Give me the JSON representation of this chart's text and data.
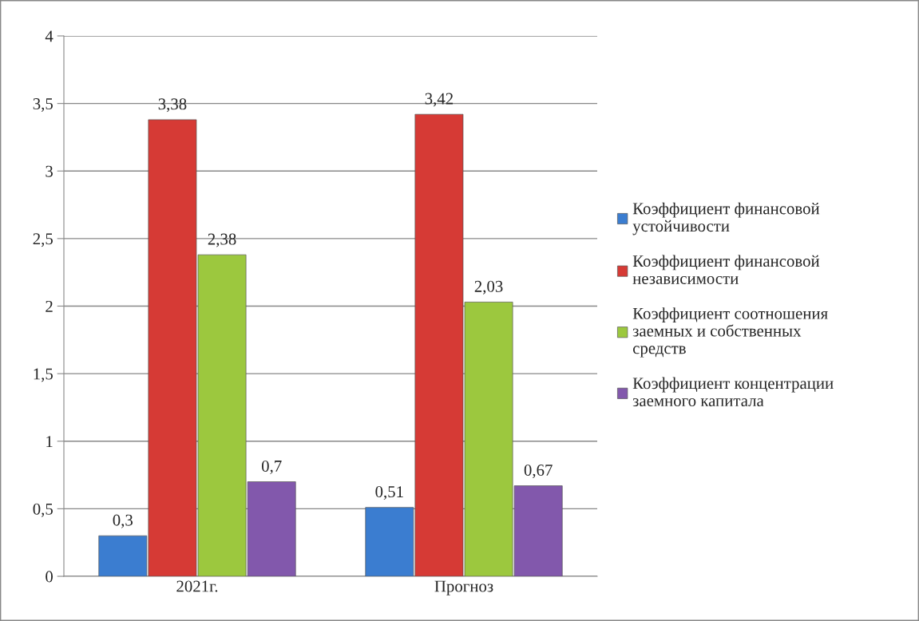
{
  "chart_data": {
    "type": "bar",
    "categories": [
      "2021г.",
      "Прогноз"
    ],
    "series": [
      {
        "name": "Коэффициент финансовой\nустойчивости",
        "color": "#3b7dd0",
        "values": [
          0.3,
          0.51
        ],
        "value_labels": [
          "0,3",
          "0,51"
        ]
      },
      {
        "name": "Коэффициент финансовой\nнезависимости",
        "color": "#d63a35",
        "values": [
          3.38,
          3.42
        ],
        "value_labels": [
          "3,38",
          "3,42"
        ]
      },
      {
        "name": "Коэффициент соотношения\nзаемных и собственных\nсредств",
        "color": "#9cc83e",
        "values": [
          2.38,
          2.03
        ],
        "value_labels": [
          "2,38",
          "2,03"
        ]
      },
      {
        "name": "Коэффициент концентрации\nзаемного капитала",
        "color": "#8258ac",
        "values": [
          0.7,
          0.67
        ],
        "value_labels": [
          "0,7",
          "0,67"
        ]
      }
    ],
    "ylim": [
      0,
      4
    ],
    "yticks": [
      0,
      {
        "value": 0.5,
        "label": "0,5"
      },
      1,
      {
        "value": 1.5,
        "label": "1,5"
      },
      2,
      {
        "value": 2.5,
        "label": "2,5"
      },
      3,
      {
        "value": 3.5,
        "label": "3,5"
      },
      4
    ],
    "grid": "y",
    "legend": "right"
  }
}
